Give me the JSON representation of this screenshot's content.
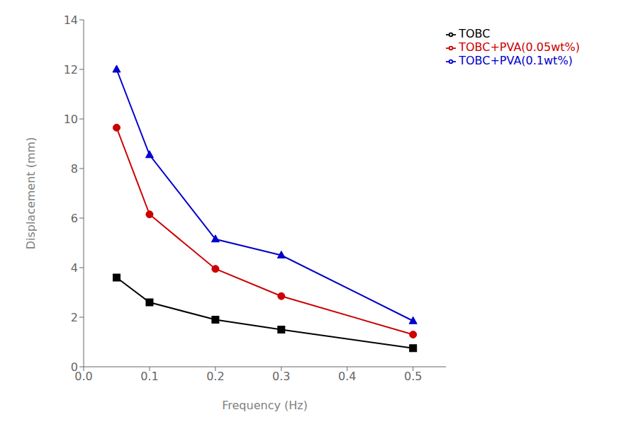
{
  "chart_data": {
    "type": "line",
    "xlabel": "Frequency (Hz)",
    "ylabel": "Displacement (mm)",
    "x": [
      0.05,
      0.1,
      0.2,
      0.3,
      0.5
    ],
    "series": [
      {
        "name": "TOBC",
        "color": "#000000",
        "marker": "square",
        "values": [
          3.6,
          2.6,
          1.9,
          1.5,
          0.75
        ]
      },
      {
        "name": "TOBC+PVA(0.05wt%)",
        "color": "#cc0000",
        "marker": "circle",
        "values": [
          9.65,
          6.15,
          3.95,
          2.85,
          1.3
        ]
      },
      {
        "name": "TOBC+PVA(0.1wt%)",
        "color": "#0000cc",
        "marker": "triangle",
        "values": [
          12.0,
          8.55,
          5.15,
          4.5,
          1.85
        ]
      }
    ],
    "xlim": [
      0.0,
      0.55
    ],
    "ylim": [
      0,
      14
    ],
    "xticks": [
      {
        "value": 0.0,
        "label": "0.0"
      },
      0.1,
      0.2,
      0.3,
      0.4,
      0.5
    ],
    "yticks": [
      0,
      2,
      4,
      6,
      8,
      10,
      12,
      14
    ],
    "legend": "upper right"
  }
}
